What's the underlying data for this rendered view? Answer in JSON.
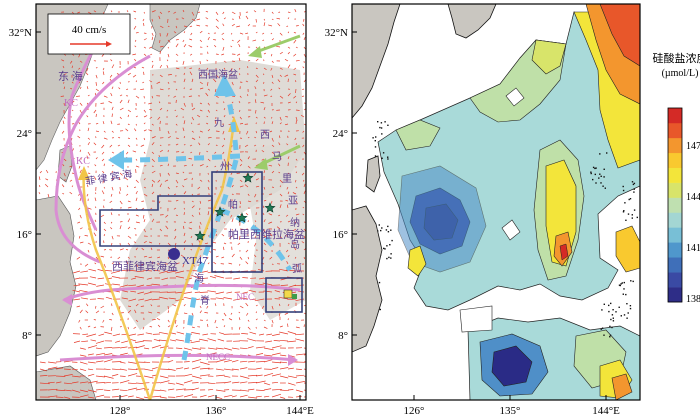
{
  "left_map": {
    "lat_labels": [
      "32°N",
      "24°",
      "16°",
      "8°"
    ],
    "lon_labels": [
      "128°",
      "136°",
      "144°E"
    ],
    "scale_label": "40 cm/s",
    "sea_labels": {
      "east_china_sea": "东  海",
      "philippine_sea": "菲 律 宾 海",
      "shikoku_basin": "西国海盆",
      "kyushu_palau_1": "九",
      "kyushu_palau_2": "州",
      "kyushu_palau_3": "帕",
      "west_mariana_1": "西",
      "west_mariana_2": "马",
      "west_mariana_3": "里",
      "west_mariana_4": "亚",
      "west_mariana_5": "纳",
      "west_mariana_6": "岛",
      "west_mariana_7": "弧",
      "parece_vela_basin": "帕里西维拉海盆",
      "west_philippine_basin": "西菲律宾海盆",
      "philippine_rise_1": "海",
      "philippine_rise_2": "脊"
    },
    "current_labels": {
      "kc_north": "KC",
      "kc_south": "KC",
      "nec": "NEC",
      "necc": "NECC"
    },
    "station_label": "XT47"
  },
  "right_map": {
    "lat_labels": [
      "32°N",
      "24°",
      "16°",
      "8°"
    ],
    "lon_labels": [
      "126°",
      "135°",
      "144°E"
    ]
  },
  "colorbar": {
    "title_line1": "硅酸盐浓度",
    "title_line2": "(µmol/L)",
    "ticks": [
      "147",
      "144",
      "141",
      "138"
    ],
    "colors": [
      "#2e2d87",
      "#3a4aa4",
      "#3f6fb9",
      "#4f97cc",
      "#78bfd6",
      "#a3d6d3",
      "#bfe0b0",
      "#d8e46a",
      "#f3e53a",
      "#f9c92f",
      "#f3962e",
      "#e8572a",
      "#d42a26"
    ]
  }
}
